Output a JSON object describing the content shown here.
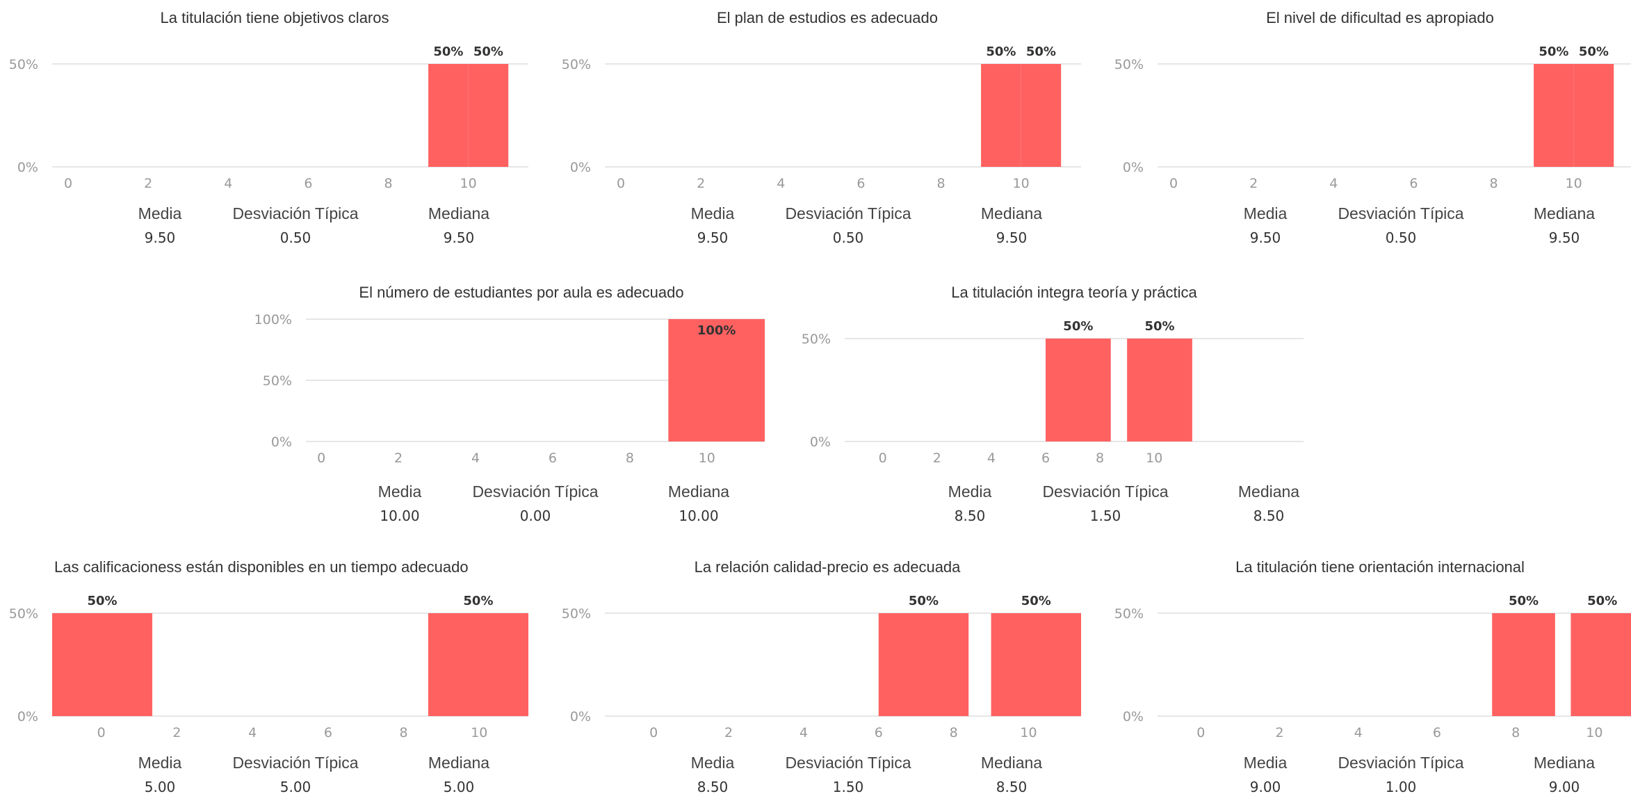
{
  "colors": {
    "bar": "#FF6161",
    "grid": "#E6E6E6",
    "axis_text": "#999999",
    "label_text": "#333333"
  },
  "stat_labels": {
    "mean": "Media",
    "std": "Desviación Típica",
    "median": "Mediana"
  },
  "chart_data": [
    {
      "type": "bar",
      "title": "La titulación tiene objetivos claros",
      "bins": [
        [
          9,
          10,
          50
        ],
        [
          10,
          11,
          50
        ]
      ],
      "bar_labels": [
        "50%",
        "50%"
      ],
      "x_ticks": [
        0,
        2,
        4,
        6,
        8,
        10
      ],
      "y_ticks": [
        "0%",
        "50%"
      ],
      "ylim": [
        0,
        50
      ],
      "stats": {
        "mean": "9.50",
        "std": "0.50",
        "median": "9.50"
      }
    },
    {
      "type": "bar",
      "title": "El plan de estudios es adecuado",
      "bins": [
        [
          9,
          10,
          50
        ],
        [
          10,
          11,
          50
        ]
      ],
      "bar_labels": [
        "50%",
        "50%"
      ],
      "x_ticks": [
        0,
        2,
        4,
        6,
        8,
        10
      ],
      "y_ticks": [
        "0%",
        "50%"
      ],
      "ylim": [
        0,
        50
      ],
      "stats": {
        "mean": "9.50",
        "std": "0.50",
        "median": "9.50"
      }
    },
    {
      "type": "bar",
      "title": "El nivel de dificultad es apropiado",
      "bins": [
        [
          9,
          10,
          50
        ],
        [
          10,
          11,
          50
        ]
      ],
      "bar_labels": [
        "50%",
        "50%"
      ],
      "x_ticks": [
        0,
        2,
        4,
        6,
        8,
        10
      ],
      "y_ticks": [
        "0%",
        "50%"
      ],
      "ylim": [
        0,
        50
      ],
      "stats": {
        "mean": "9.50",
        "std": "0.50",
        "median": "9.50"
      }
    },
    {
      "type": "bar",
      "title": "El número de estudiantes por aula es adecuado",
      "bins": [
        [
          9,
          11.5,
          100
        ]
      ],
      "bar_labels": [
        "100%"
      ],
      "x_ticks": [
        0,
        2,
        4,
        6,
        8,
        10
      ],
      "y_ticks": [
        "0%",
        "50%",
        "100%"
      ],
      "ylim": [
        0,
        100
      ],
      "stats": {
        "mean": "10.00",
        "std": "0.00",
        "median": "10.00"
      }
    },
    {
      "type": "bar",
      "title": "La titulación integra teoría y práctica",
      "bins": [
        [
          6,
          8.4,
          50
        ],
        [
          9,
          11.4,
          50
        ]
      ],
      "bar_labels": [
        "50%",
        "50%"
      ],
      "x_ticks": [
        0,
        2,
        4,
        6,
        8,
        10
      ],
      "y_ticks": [
        "0%",
        "50%"
      ],
      "ylim": [
        0,
        50
      ],
      "stats": {
        "mean": "8.50",
        "std": "1.50",
        "median": "8.50"
      }
    },
    {
      "type": "bar",
      "title": "Las calificacioness están disponibles en un tiempo adecuado",
      "bins": [
        [
          -1.3,
          1.35,
          50
        ],
        [
          8.65,
          11.3,
          50
        ]
      ],
      "bar_labels": [
        "50%",
        "50%"
      ],
      "x_ticks": [
        0,
        2,
        4,
        6,
        8,
        10
      ],
      "y_ticks": [
        "0%",
        "50%"
      ],
      "ylim": [
        0,
        50
      ],
      "stats": {
        "mean": "5.00",
        "std": "5.00",
        "median": "5.00"
      }
    },
    {
      "type": "bar",
      "title": "La relación calidad-precio es adecuada",
      "bins": [
        [
          6,
          8.4,
          50
        ],
        [
          9,
          11.4,
          50
        ]
      ],
      "bar_labels": [
        "50%",
        "50%"
      ],
      "x_ticks": [
        0,
        2,
        4,
        6,
        8,
        10
      ],
      "y_ticks": [
        "0%",
        "50%"
      ],
      "ylim": [
        0,
        50
      ],
      "stats": {
        "mean": "8.50",
        "std": "1.50",
        "median": "8.50"
      }
    },
    {
      "type": "bar",
      "title": "La titulación tiene orientación internacional",
      "bins": [
        [
          7.4,
          9,
          50
        ],
        [
          9.4,
          11,
          50
        ]
      ],
      "bar_labels": [
        "50%",
        "50%"
      ],
      "x_ticks": [
        0,
        2,
        4,
        6,
        8,
        10
      ],
      "y_ticks": [
        "0%",
        "50%"
      ],
      "ylim": [
        0,
        50
      ],
      "stats": {
        "mean": "9.00",
        "std": "1.00",
        "median": "9.00"
      }
    }
  ]
}
